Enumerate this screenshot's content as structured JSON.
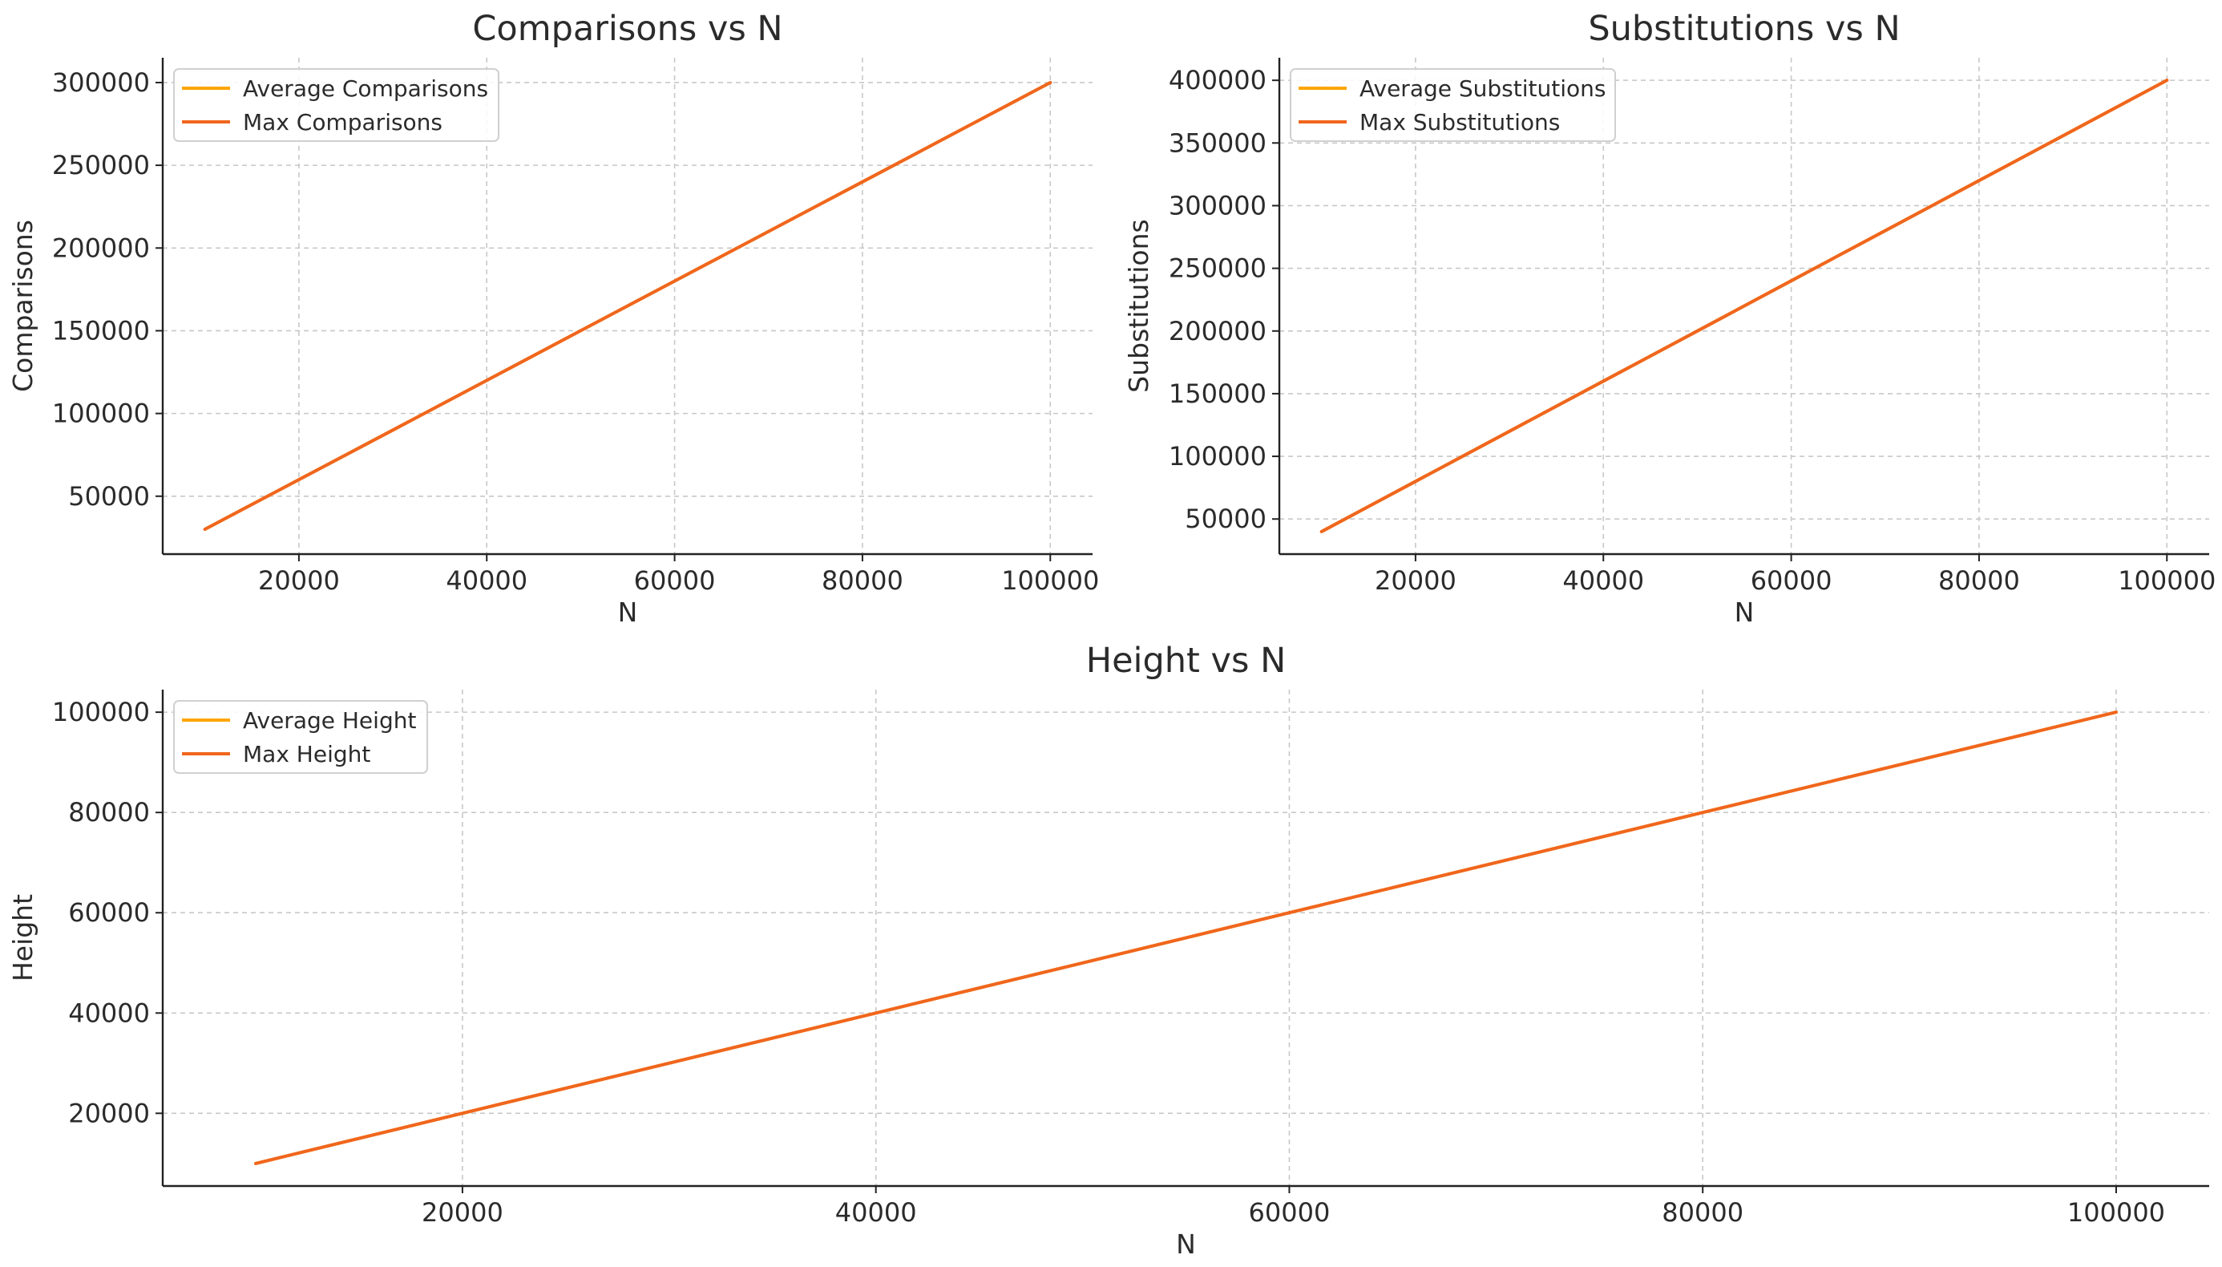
{
  "chart_data": [
    {
      "type": "line",
      "title": "Comparisons vs N",
      "xlabel": "N",
      "ylabel": "Comparisons",
      "x": [
        10000,
        20000,
        30000,
        40000,
        50000,
        60000,
        70000,
        80000,
        90000,
        100000
      ],
      "xlim": [
        5500,
        104500
      ],
      "ylim": [
        15000,
        315000
      ],
      "xticks": [
        20000,
        40000,
        60000,
        80000,
        100000
      ],
      "yticks": [
        50000,
        100000,
        150000,
        200000,
        250000,
        300000
      ],
      "grid": true,
      "legend_position": "top-left",
      "series": [
        {
          "name": "Average Comparisons",
          "color": "#FFA500",
          "values": [
            30000,
            60000,
            90000,
            120000,
            150000,
            180000,
            210000,
            240000,
            270000,
            300000
          ]
        },
        {
          "name": "Max Comparisons",
          "color": "#F0661E",
          "values": [
            30000,
            60000,
            90000,
            120000,
            150000,
            180000,
            210000,
            240000,
            270000,
            300000
          ]
        }
      ]
    },
    {
      "type": "line",
      "title": "Substitutions vs N",
      "xlabel": "N",
      "ylabel": "Substitutions",
      "x": [
        10000,
        20000,
        30000,
        40000,
        50000,
        60000,
        70000,
        80000,
        90000,
        100000
      ],
      "xlim": [
        5500,
        104500
      ],
      "ylim": [
        22000,
        418000
      ],
      "xticks": [
        20000,
        40000,
        60000,
        80000,
        100000
      ],
      "yticks": [
        50000,
        100000,
        150000,
        200000,
        250000,
        300000,
        350000,
        400000
      ],
      "grid": true,
      "legend_position": "top-left",
      "series": [
        {
          "name": "Average Substitutions",
          "color": "#FFA500",
          "values": [
            40000,
            80000,
            120000,
            160000,
            200000,
            240000,
            280000,
            320000,
            360000,
            400000
          ]
        },
        {
          "name": "Max Substitutions",
          "color": "#F0661E",
          "values": [
            40000,
            80000,
            120000,
            160000,
            200000,
            240000,
            280000,
            320000,
            360000,
            400000
          ]
        }
      ]
    },
    {
      "type": "line",
      "title": "Height vs N",
      "xlabel": "N",
      "ylabel": "Height",
      "x": [
        10000,
        20000,
        30000,
        40000,
        50000,
        60000,
        70000,
        80000,
        90000,
        100000
      ],
      "xlim": [
        5500,
        104500
      ],
      "ylim": [
        5500,
        104500
      ],
      "xticks": [
        20000,
        40000,
        60000,
        80000,
        100000
      ],
      "yticks": [
        20000,
        40000,
        60000,
        80000,
        100000
      ],
      "grid": true,
      "legend_position": "top-left",
      "series": [
        {
          "name": "Average Height",
          "color": "#FFA500",
          "values": [
            10000,
            20000,
            30000,
            40000,
            50000,
            60000,
            70000,
            80000,
            90000,
            100000
          ]
        },
        {
          "name": "Max Height",
          "color": "#F0661E",
          "values": [
            10000,
            20000,
            30000,
            40000,
            50000,
            60000,
            70000,
            80000,
            90000,
            100000
          ]
        }
      ]
    }
  ]
}
